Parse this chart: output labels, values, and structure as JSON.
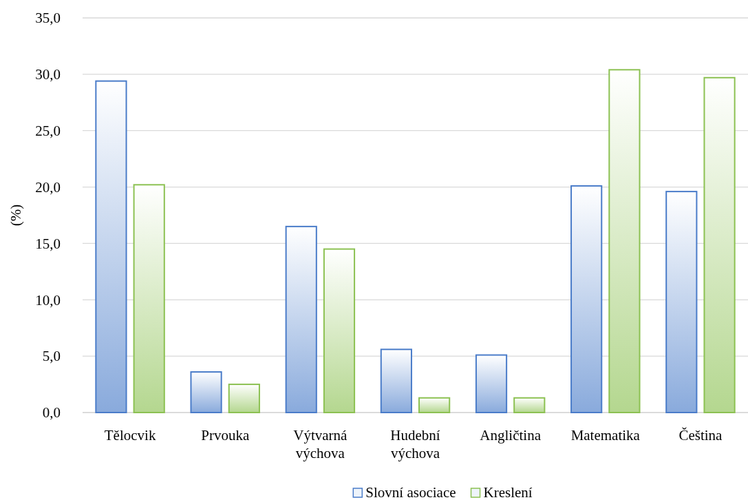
{
  "chart_data": {
    "type": "bar",
    "ylabel": "(%)",
    "categories": [
      "Tělocvik",
      "Prvouka",
      "Výtvarná výchova",
      "Hudební výchova",
      "Angličtina",
      "Matematika",
      "Čeština"
    ],
    "series": [
      {
        "name": "Slovní asociace",
        "color": "#4a7cc9",
        "values": [
          29.4,
          3.6,
          16.5,
          5.6,
          5.1,
          20.1,
          19.6
        ]
      },
      {
        "name": "Kreslení",
        "color": "#8cc152",
        "values": [
          20.2,
          2.5,
          14.5,
          1.3,
          1.3,
          30.4,
          29.7
        ]
      }
    ],
    "ylim": [
      0,
      35
    ],
    "yticks": [
      {
        "value": 0,
        "label": "0,0"
      },
      {
        "value": 5,
        "label": "5,0"
      },
      {
        "value": 10,
        "label": "10,0"
      },
      {
        "value": 15,
        "label": "15,0"
      },
      {
        "value": 20,
        "label": "20,0"
      },
      {
        "value": 25,
        "label": "25,0"
      },
      {
        "value": 30,
        "label": "30,0"
      },
      {
        "value": 35,
        "label": "35,0"
      }
    ],
    "grid": "y",
    "legend": "bottom"
  }
}
